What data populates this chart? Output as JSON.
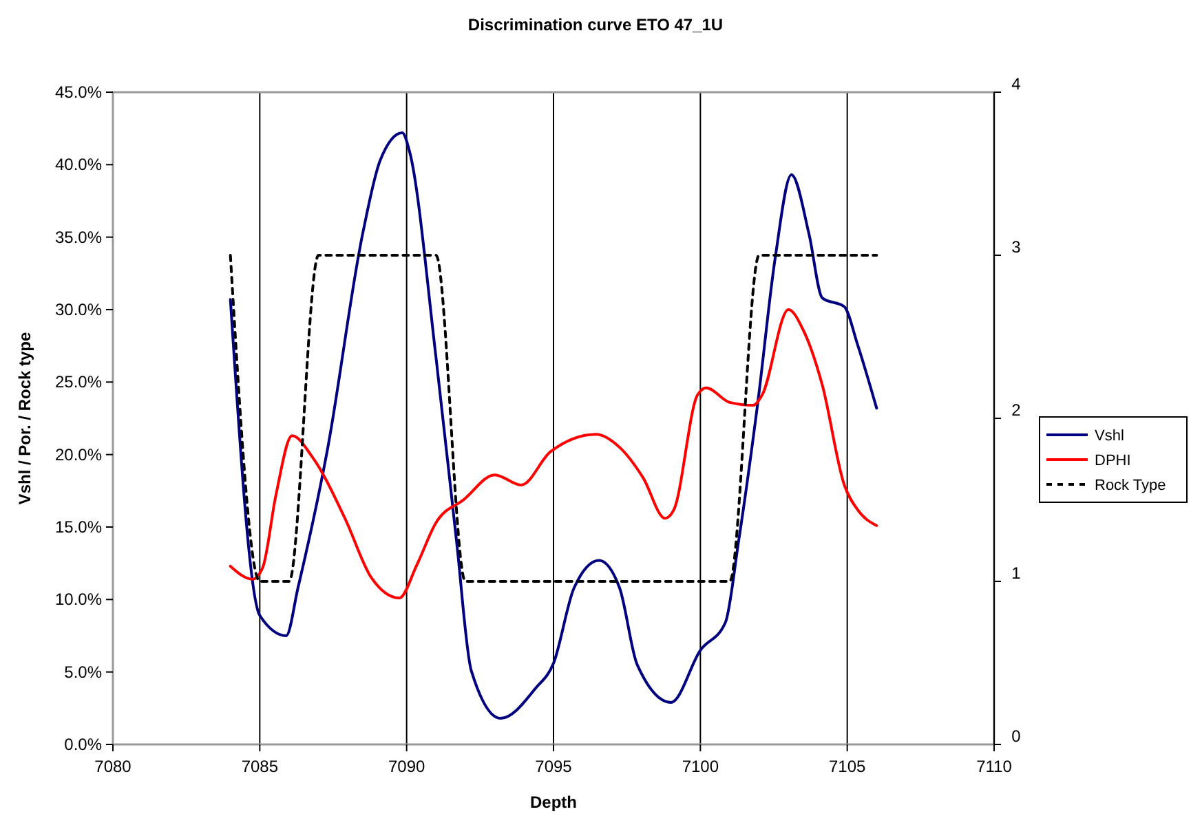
{
  "chart_data": {
    "type": "line",
    "title": "Discrimination curve ETO 47_1U",
    "xlabel": "Depth",
    "ylabel": "Vshl / Por. / Rock type",
    "xlim": [
      7080,
      7110
    ],
    "xticks": [
      7080,
      7085,
      7090,
      7095,
      7100,
      7105,
      7110
    ],
    "ylim": [
      0,
      45
    ],
    "yticks": [
      {
        "value": 0,
        "label": "0.0%"
      },
      {
        "value": 5,
        "label": "5.0%"
      },
      {
        "value": 10,
        "label": "10.0%"
      },
      {
        "value": 15,
        "label": "15.0%"
      },
      {
        "value": 20,
        "label": "20.0%"
      },
      {
        "value": 25,
        "label": "25.0%"
      },
      {
        "value": 30,
        "label": "30.0%"
      },
      {
        "value": 35,
        "label": "35.0%"
      },
      {
        "value": 40,
        "label": "40.0%"
      },
      {
        "value": 45,
        "label": "45.0%"
      }
    ],
    "y2lim": [
      0,
      4
    ],
    "y2ticks": [
      0,
      1,
      2,
      3,
      4
    ],
    "grid": "x",
    "legend": "right",
    "marker": "none",
    "series": [
      {
        "name": "Vshl",
        "color": "#000080",
        "line_style": "solid",
        "x": [
          7084,
          7085,
          7085.9,
          7086.3,
          7087.3,
          7088.5,
          7089.1,
          7089.85,
          7090.1,
          7091,
          7091.7,
          7092.2,
          7093.2,
          7094.4,
          7095,
          7095.7,
          7096.55,
          7097.25,
          7097.85,
          7099,
          7100,
          7100.85,
          7101.3,
          7101.95,
          7102.55,
          7103.1,
          7103.7,
          7104.15,
          7104.9,
          7105.35,
          7106
        ],
        "values": [
          30.7,
          8.9,
          7.5,
          10.8,
          20.3,
          35.2,
          40.3,
          42.2,
          40.9,
          26.7,
          14,
          5.1,
          1.8,
          3.9,
          5.6,
          10.8,
          12.7,
          10.8,
          5.5,
          2.9,
          6.5,
          8.4,
          14,
          23.5,
          33.6,
          39.3,
          35.2,
          30.8,
          30.2,
          27.6,
          23.2
        ]
      },
      {
        "name": "DPHI",
        "color": "#ff0000",
        "line_style": "solid",
        "x": [
          7084,
          7084.75,
          7085.1,
          7085.55,
          7086.1,
          7086.8,
          7087.9,
          7088.8,
          7089.75,
          7090.35,
          7091,
          7091.95,
          7093,
          7093.9,
          7094.9,
          7096.45,
          7097.25,
          7098.05,
          7098.8,
          7099.1,
          7099.9,
          7100.2,
          7101,
          7101.8,
          7102.1,
          7103,
          7103.5,
          7104.15,
          7104.9,
          7105.35,
          7106
        ],
        "values": [
          12.3,
          11.4,
          12.2,
          17.2,
          21.3,
          19.8,
          15.6,
          11.5,
          10.1,
          12.4,
          15.3,
          16.9,
          18.6,
          17.9,
          20.2,
          21.4,
          20.5,
          18.4,
          15.6,
          16.2,
          24.1,
          24.6,
          23.6,
          23.4,
          24.1,
          30,
          28.6,
          24.8,
          17.9,
          16.2,
          15.1
        ]
      },
      {
        "name": "Rock Type",
        "color": "#000000",
        "line_style": "dashed",
        "axis": "y2",
        "x": [
          7084,
          7085,
          7086,
          7087,
          7088,
          7089,
          7090,
          7091,
          7092,
          7093,
          7094,
          7095,
          7096,
          7097,
          7098,
          7099,
          7100,
          7101,
          7102,
          7103,
          7104,
          7105,
          7106
        ],
        "values": [
          3,
          1,
          1,
          3,
          3,
          3,
          3,
          3,
          1,
          1,
          1,
          1,
          1,
          1,
          1,
          1,
          1,
          1,
          3,
          3,
          3,
          3,
          3
        ]
      }
    ]
  }
}
